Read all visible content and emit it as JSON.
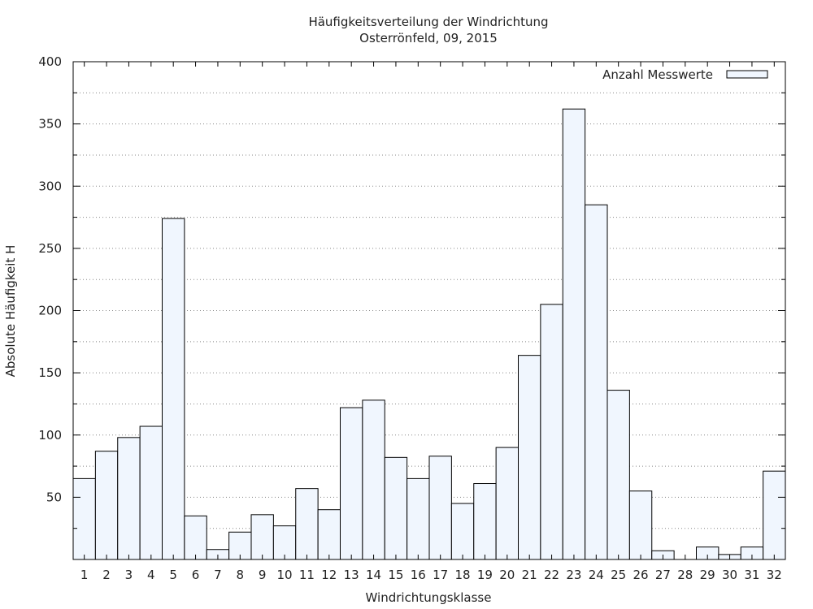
{
  "chart_data": {
    "type": "bar",
    "title": "Häufigkeitsverteilung der Windrichtung",
    "subtitle": "Osterrönfeld, 09, 2015",
    "xlabel": "Windrichtungsklasse",
    "ylabel": "Absolute Häufigkeit H",
    "ylim": [
      0,
      400
    ],
    "yticks": [
      50,
      100,
      150,
      200,
      250,
      300,
      350,
      400
    ],
    "grid": true,
    "legend_position": "top-right",
    "categories": [
      "1",
      "2",
      "3",
      "4",
      "5",
      "6",
      "7",
      "8",
      "9",
      "10",
      "11",
      "12",
      "13",
      "14",
      "15",
      "16",
      "17",
      "18",
      "19",
      "20",
      "21",
      "22",
      "23",
      "24",
      "25",
      "26",
      "27",
      "28",
      "29",
      "30",
      "31",
      "32"
    ],
    "series": [
      {
        "name": "Anzahl Messwerte",
        "color": "#f0f6fe",
        "values": [
          65,
          87,
          98,
          107,
          274,
          35,
          8,
          22,
          36,
          27,
          57,
          40,
          122,
          128,
          82,
          65,
          83,
          45,
          61,
          90,
          164,
          205,
          362,
          285,
          136,
          55,
          7,
          0,
          10,
          4,
          10,
          71
        ]
      }
    ]
  }
}
